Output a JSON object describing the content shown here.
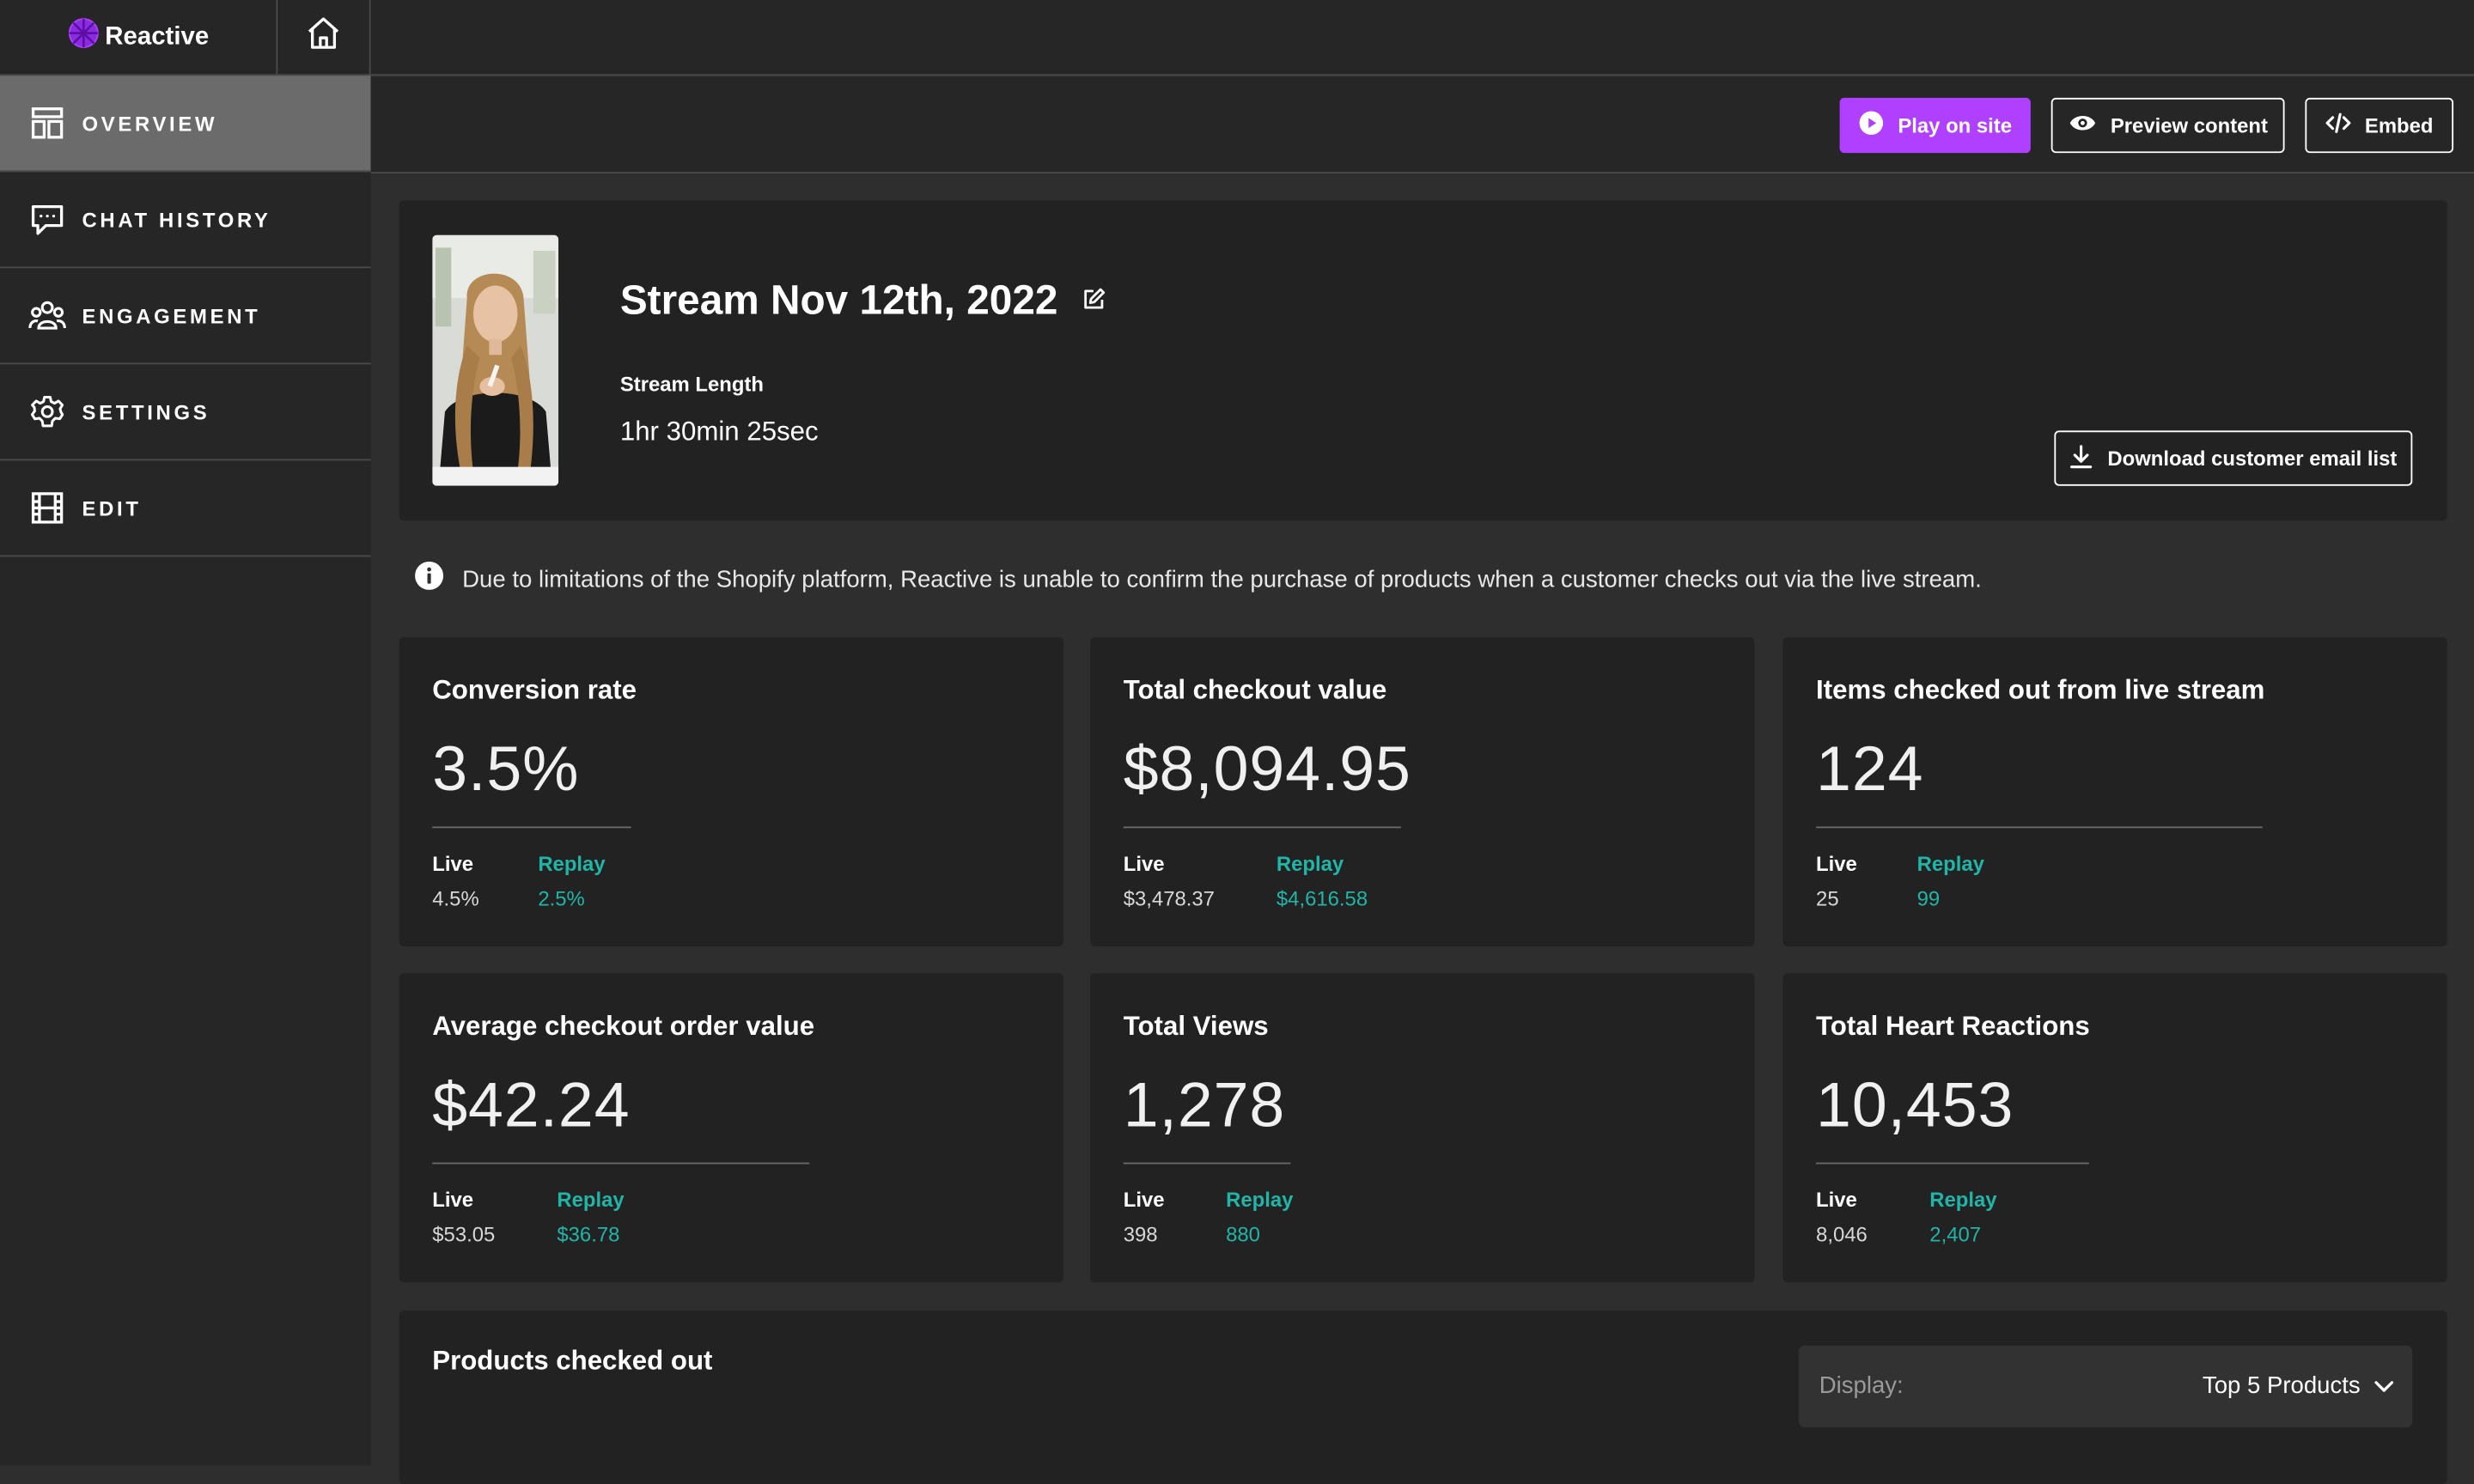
{
  "app": {
    "brand": "Reactive"
  },
  "sidebar": {
    "items": [
      {
        "label": "OVERVIEW",
        "icon": "layout-icon",
        "active": true
      },
      {
        "label": "CHAT HISTORY",
        "icon": "chat-icon",
        "active": false
      },
      {
        "label": "ENGAGEMENT",
        "icon": "people-icon",
        "active": false
      },
      {
        "label": "SETTINGS",
        "icon": "gear-icon",
        "active": false
      },
      {
        "label": "EDIT",
        "icon": "film-icon",
        "active": false
      }
    ]
  },
  "toolbar": {
    "play_label": "Play on site",
    "preview_label": "Preview content",
    "embed_label": "Embed"
  },
  "stream": {
    "title": "Stream Nov 12th, 2022",
    "length_label": "Stream Length",
    "length_value": "1hr 30min 25sec",
    "download_label": "Download customer email list"
  },
  "notice": {
    "text": "Due to limitations of the Shopify platform, Reactive is unable to confirm the purchase of products when a customer checks out via the live stream."
  },
  "stats": [
    {
      "title": "Conversion rate",
      "value": "3.5%",
      "live_label": "Live",
      "live_value": "4.5%",
      "replay_label": "Replay",
      "replay_value": "2.5%"
    },
    {
      "title": "Total checkout value",
      "value": "$8,094.95",
      "live_label": "Live",
      "live_value": "$3,478.37",
      "replay_label": "Replay",
      "replay_value": "$4,616.58"
    },
    {
      "title": "Items checked out from live stream",
      "value": "124",
      "live_label": "Live",
      "live_value": "25",
      "replay_label": "Replay",
      "replay_value": "99"
    },
    {
      "title": "Average checkout order value",
      "value": "$42.24",
      "live_label": "Live",
      "live_value": "$53.05",
      "replay_label": "Replay",
      "replay_value": "$36.78"
    },
    {
      "title": "Total Views",
      "value": "1,278",
      "live_label": "Live",
      "live_value": "398",
      "replay_label": "Replay",
      "replay_value": "880"
    },
    {
      "title": "Total Heart Reactions",
      "value": "10,453",
      "live_label": "Live",
      "live_value": "8,046",
      "replay_label": "Replay",
      "replay_value": "2,407"
    }
  ],
  "products": {
    "title": "Products checked out",
    "display_label": "Display:",
    "display_value": "Top 5 Products"
  },
  "colors": {
    "accent": "#b040ff",
    "replay": "#21b5a8",
    "background": "#2e2e2e",
    "card": "#222222",
    "sidebar": "#262626",
    "active_nav": "#6b6b6b"
  }
}
